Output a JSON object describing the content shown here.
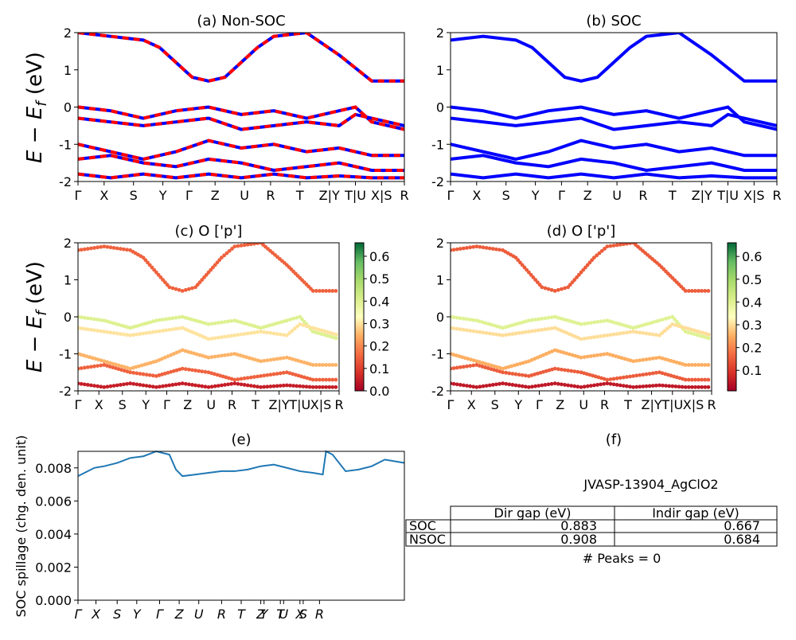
{
  "colors": {
    "nonsoc_red": "#ff0000",
    "nonsoc_blue": "#0000ff",
    "soc_blue": "#0000ff",
    "spillage_line": "#1f77b4",
    "colormap": "RdYlGn"
  },
  "ylabel_bands": "E − E_f (eV)",
  "kpath_labels": [
    "Γ",
    "X",
    "S",
    "Y",
    "Γ",
    "Z",
    "U",
    "R",
    "T",
    "Z|Y",
    "T|U",
    "X|S",
    "R"
  ],
  "kpath_labels_panel_e": [
    "Γ",
    "X",
    "S",
    "Y",
    "Γ",
    "Z",
    "U",
    "R",
    "T",
    "Z",
    "Y",
    "T",
    "U",
    "X",
    "S",
    "R"
  ],
  "chart_data": [
    {
      "id": "a",
      "type": "line",
      "title": "(a) Non-SOC",
      "ylabel": "E − E_f (eV)",
      "ylim": [
        -2,
        2
      ],
      "yticks": [
        -2,
        -1,
        0,
        1,
        2
      ],
      "xticklabels": [
        "Γ",
        "X",
        "S",
        "Y",
        "Γ",
        "Z",
        "U",
        "R",
        "T",
        "Z|Y",
        "T|U",
        "X|S",
        "R"
      ],
      "series": [
        {
          "style": "red/blue dashed",
          "x": [
            0,
            0.1,
            0.2,
            0.25,
            0.3,
            0.35,
            0.4,
            0.45,
            0.5,
            0.55,
            0.6,
            0.7,
            0.8,
            0.9,
            1.0
          ],
          "y": [
            2.0,
            1.9,
            1.8,
            1.6,
            1.2,
            0.8,
            0.7,
            0.8,
            1.2,
            1.6,
            1.9,
            2.0,
            1.4,
            0.7,
            0.7
          ]
        },
        {
          "style": "red/blue dashed",
          "x": [
            0,
            0.1,
            0.2,
            0.3,
            0.4,
            0.5,
            0.6,
            0.7,
            0.8,
            0.85,
            0.9,
            1.0
          ],
          "y": [
            0.0,
            -0.1,
            -0.3,
            -0.1,
            0.0,
            -0.2,
            -0.1,
            -0.3,
            -0.1,
            0.0,
            -0.4,
            -0.6
          ]
        },
        {
          "style": "red/blue dashed",
          "x": [
            0,
            0.1,
            0.2,
            0.3,
            0.4,
            0.5,
            0.6,
            0.7,
            0.8,
            0.85,
            0.9,
            1.0
          ],
          "y": [
            -0.3,
            -0.4,
            -0.5,
            -0.4,
            -0.3,
            -0.6,
            -0.5,
            -0.4,
            -0.5,
            -0.2,
            -0.3,
            -0.5
          ]
        },
        {
          "style": "red/blue dashed",
          "x": [
            0,
            0.1,
            0.2,
            0.3,
            0.4,
            0.5,
            0.6,
            0.7,
            0.8,
            0.9,
            1.0
          ],
          "y": [
            -1.0,
            -1.2,
            -1.4,
            -1.2,
            -0.9,
            -1.1,
            -1.0,
            -1.2,
            -1.1,
            -1.3,
            -1.3
          ]
        },
        {
          "style": "red/blue dashed",
          "x": [
            0,
            0.1,
            0.2,
            0.3,
            0.4,
            0.5,
            0.6,
            0.7,
            0.8,
            0.9,
            1.0
          ],
          "y": [
            -1.4,
            -1.3,
            -1.5,
            -1.6,
            -1.4,
            -1.5,
            -1.7,
            -1.6,
            -1.5,
            -1.7,
            -1.7
          ]
        },
        {
          "style": "red/blue dashed",
          "x": [
            0,
            0.1,
            0.2,
            0.3,
            0.4,
            0.5,
            0.6,
            0.7,
            0.8,
            0.9,
            1.0
          ],
          "y": [
            -1.8,
            -1.9,
            -1.8,
            -1.9,
            -1.8,
            -1.9,
            -1.8,
            -1.9,
            -1.85,
            -1.9,
            -1.9
          ]
        }
      ]
    },
    {
      "id": "b",
      "type": "line",
      "title": "(b) SOC",
      "ylim": [
        -2,
        2
      ],
      "yticks": [
        -2,
        -1,
        0,
        1,
        2
      ],
      "xticklabels": [
        "Γ",
        "X",
        "S",
        "Y",
        "Γ",
        "Z",
        "U",
        "R",
        "T",
        "Z|Y",
        "T|U",
        "X|S",
        "R"
      ],
      "series": [
        {
          "style": "blue",
          "x": [
            0,
            0.1,
            0.2,
            0.25,
            0.3,
            0.35,
            0.4,
            0.45,
            0.5,
            0.55,
            0.6,
            0.7,
            0.8,
            0.9,
            1.0
          ],
          "y": [
            1.8,
            1.9,
            1.8,
            1.6,
            1.2,
            0.8,
            0.7,
            0.8,
            1.2,
            1.6,
            1.9,
            2.0,
            1.4,
            0.7,
            0.7
          ]
        },
        {
          "style": "blue",
          "x": [
            0,
            0.1,
            0.2,
            0.3,
            0.4,
            0.5,
            0.6,
            0.7,
            0.8,
            0.85,
            0.9,
            1.0
          ],
          "y": [
            0.0,
            -0.1,
            -0.3,
            -0.1,
            0.0,
            -0.2,
            -0.1,
            -0.3,
            -0.1,
            0.0,
            -0.4,
            -0.6
          ]
        },
        {
          "style": "blue",
          "x": [
            0,
            0.1,
            0.2,
            0.3,
            0.4,
            0.5,
            0.6,
            0.7,
            0.8,
            0.85,
            0.9,
            1.0
          ],
          "y": [
            -0.3,
            -0.4,
            -0.5,
            -0.4,
            -0.3,
            -0.6,
            -0.5,
            -0.4,
            -0.5,
            -0.2,
            -0.3,
            -0.5
          ]
        },
        {
          "style": "blue",
          "x": [
            0,
            0.1,
            0.2,
            0.3,
            0.4,
            0.5,
            0.6,
            0.7,
            0.8,
            0.9,
            1.0
          ],
          "y": [
            -1.0,
            -1.2,
            -1.4,
            -1.2,
            -0.9,
            -1.1,
            -1.0,
            -1.2,
            -1.1,
            -1.3,
            -1.3
          ]
        },
        {
          "style": "blue",
          "x": [
            0,
            0.1,
            0.2,
            0.3,
            0.4,
            0.5,
            0.6,
            0.7,
            0.8,
            0.9,
            1.0
          ],
          "y": [
            -1.4,
            -1.3,
            -1.5,
            -1.6,
            -1.4,
            -1.5,
            -1.7,
            -1.6,
            -1.5,
            -1.7,
            -1.7
          ]
        },
        {
          "style": "blue",
          "x": [
            0,
            0.1,
            0.2,
            0.3,
            0.4,
            0.5,
            0.6,
            0.7,
            0.8,
            0.9,
            1.0
          ],
          "y": [
            -1.8,
            -1.9,
            -1.8,
            -1.9,
            -1.8,
            -1.9,
            -1.8,
            -1.9,
            -1.85,
            -1.9,
            -1.9
          ]
        }
      ]
    },
    {
      "id": "c",
      "type": "scatter",
      "title": "(c)  O ['p']",
      "ylabel": "E − E_f (eV)",
      "ylim": [
        -2,
        2
      ],
      "yticks": [
        -2,
        -1,
        0,
        1,
        2
      ],
      "xticklabels": [
        "Γ",
        "X",
        "S",
        "Y",
        "Γ",
        "Z",
        "U",
        "R",
        "T",
        "Z|Y",
        "T|U",
        "X|S",
        "R"
      ],
      "colorbar": {
        "ticks": [
          "0.0",
          "0.1",
          "0.2",
          "0.3",
          "0.4",
          "0.5",
          "0.6"
        ],
        "range": [
          0,
          0.66
        ]
      },
      "series": [
        {
          "weight": 0.15,
          "x": [
            0,
            0.1,
            0.2,
            0.25,
            0.3,
            0.35,
            0.4,
            0.45,
            0.5,
            0.55,
            0.6,
            0.7,
            0.8,
            0.9,
            1.0
          ],
          "y": [
            1.8,
            1.9,
            1.8,
            1.6,
            1.2,
            0.8,
            0.7,
            0.8,
            1.2,
            1.6,
            1.9,
            2.0,
            1.4,
            0.7,
            0.7
          ]
        },
        {
          "weight": 0.4,
          "x": [
            0,
            0.1,
            0.2,
            0.3,
            0.4,
            0.5,
            0.6,
            0.7,
            0.8,
            0.85,
            0.9,
            1.0
          ],
          "y": [
            0.0,
            -0.1,
            -0.3,
            -0.1,
            0.0,
            -0.2,
            -0.1,
            -0.3,
            -0.1,
            0.0,
            -0.4,
            -0.6
          ]
        },
        {
          "weight": 0.3,
          "x": [
            0,
            0.1,
            0.2,
            0.3,
            0.4,
            0.5,
            0.6,
            0.7,
            0.8,
            0.85,
            0.9,
            1.0
          ],
          "y": [
            -0.3,
            -0.4,
            -0.5,
            -0.4,
            -0.3,
            -0.6,
            -0.5,
            -0.4,
            -0.5,
            -0.2,
            -0.3,
            -0.5
          ]
        },
        {
          "weight": 0.25,
          "x": [
            0,
            0.1,
            0.2,
            0.3,
            0.4,
            0.5,
            0.6,
            0.7,
            0.8,
            0.9,
            1.0
          ],
          "y": [
            -1.0,
            -1.2,
            -1.4,
            -1.2,
            -0.9,
            -1.1,
            -1.0,
            -1.2,
            -1.1,
            -1.3,
            -1.3
          ]
        },
        {
          "weight": 0.15,
          "x": [
            0,
            0.1,
            0.2,
            0.3,
            0.4,
            0.5,
            0.6,
            0.7,
            0.8,
            0.9,
            1.0
          ],
          "y": [
            -1.4,
            -1.3,
            -1.5,
            -1.6,
            -1.4,
            -1.5,
            -1.7,
            -1.6,
            -1.5,
            -1.7,
            -1.7
          ]
        },
        {
          "weight": 0.05,
          "x": [
            0,
            0.1,
            0.2,
            0.3,
            0.4,
            0.5,
            0.6,
            0.7,
            0.8,
            0.9,
            1.0
          ],
          "y": [
            -1.8,
            -1.9,
            -1.8,
            -1.9,
            -1.8,
            -1.9,
            -1.8,
            -1.9,
            -1.85,
            -1.9,
            -1.9
          ]
        }
      ]
    },
    {
      "id": "d",
      "type": "scatter",
      "title": "(d) O ['p']",
      "ylim": [
        -2,
        2
      ],
      "yticks": [
        -2,
        -1,
        0,
        1,
        2
      ],
      "xticklabels": [
        "Γ",
        "X",
        "S",
        "Y",
        "Γ",
        "Z",
        "U",
        "R",
        "T",
        "Z|Y",
        "T|U",
        "X|S",
        "R"
      ],
      "colorbar": {
        "ticks": [
          "0.1",
          "0.2",
          "0.3",
          "0.4",
          "0.5",
          "0.6"
        ],
        "range": [
          0.01,
          0.66
        ]
      },
      "series": [
        {
          "weight": 0.15,
          "x": [
            0,
            0.1,
            0.2,
            0.25,
            0.3,
            0.35,
            0.4,
            0.45,
            0.5,
            0.55,
            0.6,
            0.7,
            0.8,
            0.9,
            1.0
          ],
          "y": [
            1.8,
            1.9,
            1.8,
            1.6,
            1.2,
            0.8,
            0.7,
            0.8,
            1.2,
            1.6,
            1.9,
            2.0,
            1.4,
            0.7,
            0.7
          ]
        },
        {
          "weight": 0.4,
          "x": [
            0,
            0.1,
            0.2,
            0.3,
            0.4,
            0.5,
            0.6,
            0.7,
            0.8,
            0.85,
            0.9,
            1.0
          ],
          "y": [
            0.0,
            -0.1,
            -0.3,
            -0.1,
            0.0,
            -0.2,
            -0.1,
            -0.3,
            -0.1,
            0.0,
            -0.4,
            -0.6
          ]
        },
        {
          "weight": 0.3,
          "x": [
            0,
            0.1,
            0.2,
            0.3,
            0.4,
            0.5,
            0.6,
            0.7,
            0.8,
            0.85,
            0.9,
            1.0
          ],
          "y": [
            -0.3,
            -0.4,
            -0.5,
            -0.4,
            -0.3,
            -0.6,
            -0.5,
            -0.4,
            -0.5,
            -0.2,
            -0.3,
            -0.5
          ]
        },
        {
          "weight": 0.25,
          "x": [
            0,
            0.1,
            0.2,
            0.3,
            0.4,
            0.5,
            0.6,
            0.7,
            0.8,
            0.9,
            1.0
          ],
          "y": [
            -1.0,
            -1.2,
            -1.4,
            -1.2,
            -0.9,
            -1.1,
            -1.0,
            -1.2,
            -1.1,
            -1.3,
            -1.3
          ]
        },
        {
          "weight": 0.15,
          "x": [
            0,
            0.1,
            0.2,
            0.3,
            0.4,
            0.5,
            0.6,
            0.7,
            0.8,
            0.9,
            1.0
          ],
          "y": [
            -1.4,
            -1.3,
            -1.5,
            -1.6,
            -1.4,
            -1.5,
            -1.7,
            -1.6,
            -1.5,
            -1.7,
            -1.7
          ]
        },
        {
          "weight": 0.05,
          "x": [
            0,
            0.1,
            0.2,
            0.3,
            0.4,
            0.5,
            0.6,
            0.7,
            0.8,
            0.9,
            1.0
          ],
          "y": [
            -1.8,
            -1.9,
            -1.8,
            -1.9,
            -1.8,
            -1.9,
            -1.8,
            -1.9,
            -1.85,
            -1.9,
            -1.9
          ]
        }
      ]
    },
    {
      "id": "e",
      "type": "line",
      "title": "(e)",
      "ylabel": "SOC spillage (chg. den. unit)",
      "ylim": [
        0,
        0.009
      ],
      "yticks": [
        "0.000",
        "0.002",
        "0.004",
        "0.006",
        "0.008"
      ],
      "xticklabels": [
        "Γ",
        "X",
        "S",
        "Y",
        "Γ",
        "Z",
        "U",
        "R",
        "T",
        "Z",
        "Y",
        "T",
        "U",
        "X",
        "S",
        "R"
      ],
      "series": [
        {
          "x": [
            0,
            0.02,
            0.05,
            0.08,
            0.12,
            0.16,
            0.2,
            0.24,
            0.28,
            0.3,
            0.32,
            0.36,
            0.4,
            0.44,
            0.48,
            0.52,
            0.56,
            0.6,
            0.64,
            0.68,
            0.72,
            0.75,
            0.76,
            0.78,
            0.82,
            0.86,
            0.9,
            0.94,
            1.0
          ],
          "y": [
            0.0075,
            0.0077,
            0.008,
            0.0081,
            0.0083,
            0.0086,
            0.0087,
            0.009,
            0.0088,
            0.0079,
            0.0075,
            0.0076,
            0.0077,
            0.0078,
            0.0078,
            0.0079,
            0.0081,
            0.0082,
            0.008,
            0.0078,
            0.0077,
            0.0076,
            0.009,
            0.0088,
            0.0078,
            0.0079,
            0.0081,
            0.0085,
            0.0083
          ]
        }
      ]
    }
  ],
  "panel_f": {
    "title": "(f)",
    "material_id": "JVASP-13904_AgClO2",
    "table": {
      "columns": [
        "Dir gap (eV)",
        "Indir gap (eV)"
      ],
      "rows": [
        {
          "label": "SOC",
          "dir": "0.883",
          "indir": "0.667"
        },
        {
          "label": "NSOC",
          "dir": "0.908",
          "indir": "0.684"
        }
      ]
    },
    "peaks_text": "# Peaks = 0"
  }
}
